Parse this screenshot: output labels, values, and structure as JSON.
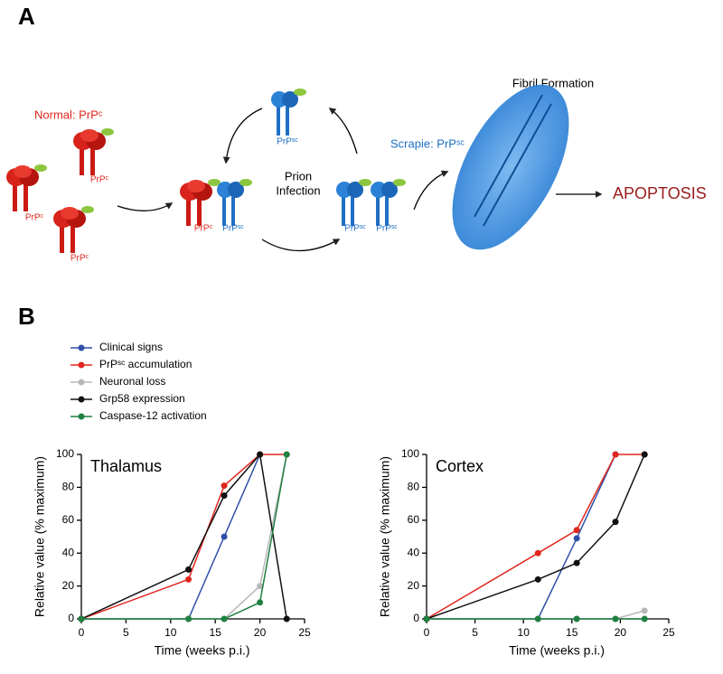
{
  "panel_a": {
    "label": "A",
    "normal": "Normal: PrPᶜ",
    "prpc_labels": [
      "PrPᶜ",
      "PrPᶜ",
      "PrPᶜ",
      "PrPᶜ"
    ],
    "prpsc_labels": [
      "PrPˢᶜ",
      "PrPˢᶜ",
      "PrPˢᶜ",
      "PrPˢᶜ"
    ],
    "prion_infection": [
      "Prion",
      "Infection"
    ],
    "scrapie": "Scrapie: PrPˢᶜ",
    "fibril": "Fibril Formation",
    "apoptosis": "APOPTOSIS"
  },
  "panel_b": {
    "label": "B"
  },
  "chart_data": [
    {
      "type": "line",
      "title": "Thalamus",
      "x_label": "Time (weeks p.i.)",
      "y_label": "Relative value (% maximum)",
      "x": [
        0,
        12,
        16,
        20,
        23
      ],
      "xlim": [
        0,
        25
      ],
      "xticks": [
        0,
        5,
        10,
        15,
        20,
        25
      ],
      "ylim": [
        0,
        100
      ],
      "yticks": [
        0,
        20,
        40,
        60,
        80,
        100
      ],
      "series": [
        {
          "name": "Clinical signs",
          "color": "#2f4fa8",
          "values": [
            0,
            0,
            50,
            100,
            null
          ]
        },
        {
          "name": "PrPˢᶜ accumulation",
          "color": "#e0261e",
          "values": [
            0,
            24,
            81,
            100,
            100
          ]
        },
        {
          "name": "Neuronal loss",
          "color": "#b8b8b8",
          "values": [
            0,
            0,
            0,
            20,
            100
          ]
        },
        {
          "name": "Grp58 expression",
          "color": "#111111",
          "values": [
            0,
            30,
            75,
            100,
            0
          ]
        },
        {
          "name": "Caspase-12 activation",
          "color": "#1f8040",
          "values": [
            0,
            0,
            0,
            10,
            100
          ]
        }
      ]
    },
    {
      "type": "line",
      "title": "Cortex",
      "x_label": "Time (weeks p.i.)",
      "y_label": "Relative value (% maximum)",
      "x": [
        0,
        11.5,
        15.5,
        19.5,
        22.5
      ],
      "xlim": [
        0,
        25
      ],
      "xticks": [
        0,
        5,
        10,
        15,
        20,
        25
      ],
      "ylim": [
        0,
        100
      ],
      "yticks": [
        0,
        20,
        40,
        60,
        80,
        100
      ],
      "series": [
        {
          "color": "#2f4fa8",
          "values": [
            0,
            0,
            49,
            100,
            null
          ]
        },
        {
          "color": "#e0261e",
          "values": [
            0,
            40,
            54,
            100,
            100
          ]
        },
        {
          "color": "#b8b8b8",
          "values": [
            0,
            0,
            0,
            0,
            5
          ]
        },
        {
          "color": "#111111",
          "values": [
            0,
            24,
            34,
            59,
            100
          ]
        },
        {
          "color": "#1f8040",
          "values": [
            0,
            0,
            0,
            0,
            0
          ]
        }
      ]
    }
  ]
}
